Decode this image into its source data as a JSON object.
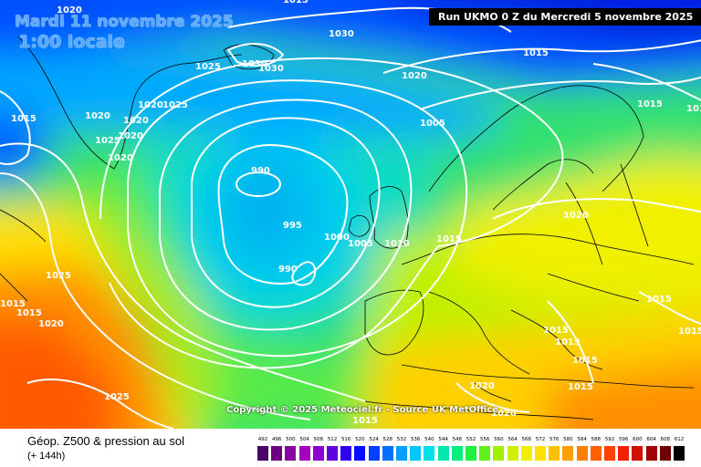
{
  "header": {
    "date_line": "Mardi 11 novembre 2025",
    "time_line": "1:00 locale",
    "run_info": "Run UKMO 0 Z du Mercredi 5 novembre 2025"
  },
  "map": {
    "copyright": "Copyright © 2025 Meteociel.fr - Source UK MetOffice",
    "pressure_labels": [
      "1020",
      "1030",
      "1030",
      "1025",
      "1030",
      "1020",
      "1015",
      "1015",
      "1015",
      "1020",
      "1020",
      "1020",
      "1025",
      "1025",
      "1020",
      "1020",
      "1005",
      "990",
      "995",
      "1000",
      "1005",
      "1010",
      "1015",
      "990",
      "1020",
      "1025",
      "1015",
      "1015",
      "1015",
      "1015",
      "1015",
      "1015",
      "1015",
      "1020",
      "1020",
      "1025",
      "1015",
      "1015",
      "1020",
      "1015",
      "1015"
    ]
  },
  "footer": {
    "title": "Géop. Z500 & pression au sol",
    "subtitle": "(+ 144h)"
  },
  "scale": {
    "values": [
      "492",
      "496",
      "500",
      "504",
      "508",
      "512",
      "516",
      "520",
      "524",
      "528",
      "532",
      "536",
      "540",
      "544",
      "548",
      "552",
      "556",
      "560",
      "564",
      "568",
      "572",
      "576",
      "580",
      "584",
      "588",
      "592",
      "596",
      "600",
      "604",
      "608",
      "612"
    ],
    "colors": [
      "#4b0066",
      "#6a007f",
      "#8a00a0",
      "#a400c0",
      "#8a00d0",
      "#6000e0",
      "#3000f0",
      "#0010ff",
      "#0040ff",
      "#0070ff",
      "#00a0ff",
      "#00c8ff",
      "#00e0e8",
      "#00e8b0",
      "#00f080",
      "#20f040",
      "#60f020",
      "#a0f000",
      "#d0f000",
      "#f0f000",
      "#ffe000",
      "#ffc000",
      "#ffa000",
      "#ff8000",
      "#ff6000",
      "#ff4000",
      "#f02000",
      "#d01000",
      "#a00000",
      "#700000",
      "#000000"
    ]
  }
}
